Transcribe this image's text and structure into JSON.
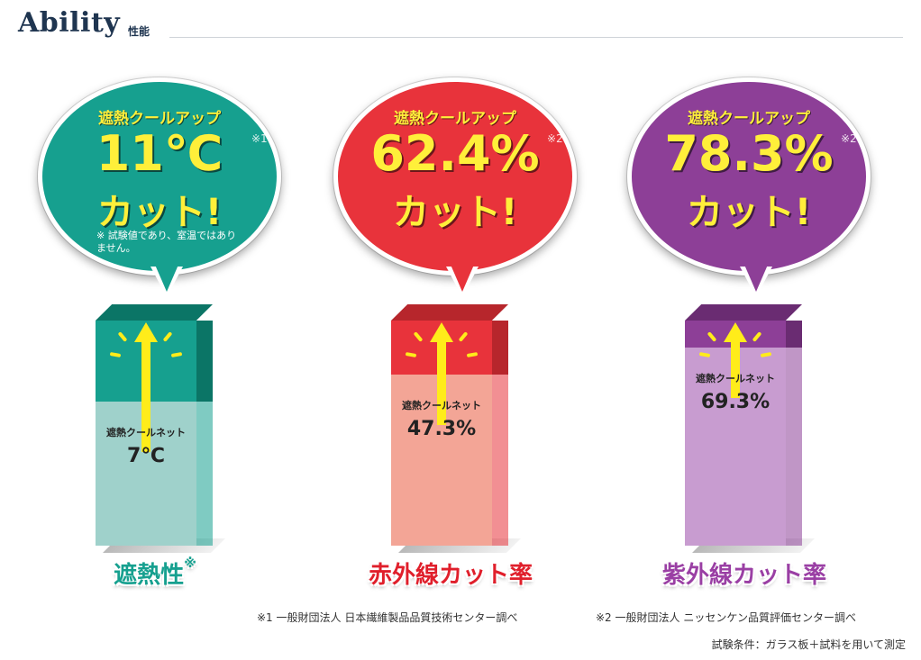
{
  "header": {
    "title": "Ability",
    "subtitle": "性能"
  },
  "panels": [
    {
      "bubble_label": "遮熱クールアップ",
      "value": "11℃",
      "note_mark": "※1",
      "cut_text": "カット!",
      "note": "※ 試験値であり、室温ではありません。",
      "net_label": "遮熱クールネット",
      "net_value": "7℃",
      "caption": "遮熱性",
      "caption_mark": "※",
      "color": "#16a08f",
      "color_light": "#9fd1cb",
      "color_dark": "#0b7566",
      "caption_color": "#16a08f",
      "net_fraction": 0.64
    },
    {
      "bubble_label": "遮熱クールアップ",
      "value": "62.4%",
      "note_mark": "※2",
      "cut_text": "カット!",
      "note": "",
      "net_label": "遮熱クールネット",
      "net_value": "47.3%",
      "caption": "赤外線カット率",
      "caption_mark": "",
      "color": "#e8333b",
      "color_light": "#f3a596",
      "color_dark": "#b7262c",
      "caption_color": "#e01f2b",
      "net_fraction": 0.76
    },
    {
      "bubble_label": "遮熱クールアップ",
      "value": "78.3%",
      "note_mark": "※2",
      "cut_text": "カット!",
      "note": "",
      "net_label": "遮熱クールネット",
      "net_value": "69.3%",
      "caption": "紫外線カット率",
      "caption_mark": "",
      "color": "#8d3f97",
      "color_light": "#c89cd0",
      "color_dark": "#6a2c72",
      "caption_color": "#9a3fa4",
      "net_fraction": 0.88
    }
  ],
  "footnotes": {
    "note1": "※1 一般財団法人 日本繊維製品品質技術センター調べ",
    "note2": "※2 一般財団法人 ニッセンケン品質評価センター調べ",
    "conditions": "試験条件：ガラス板＋試料を用いて測定"
  }
}
